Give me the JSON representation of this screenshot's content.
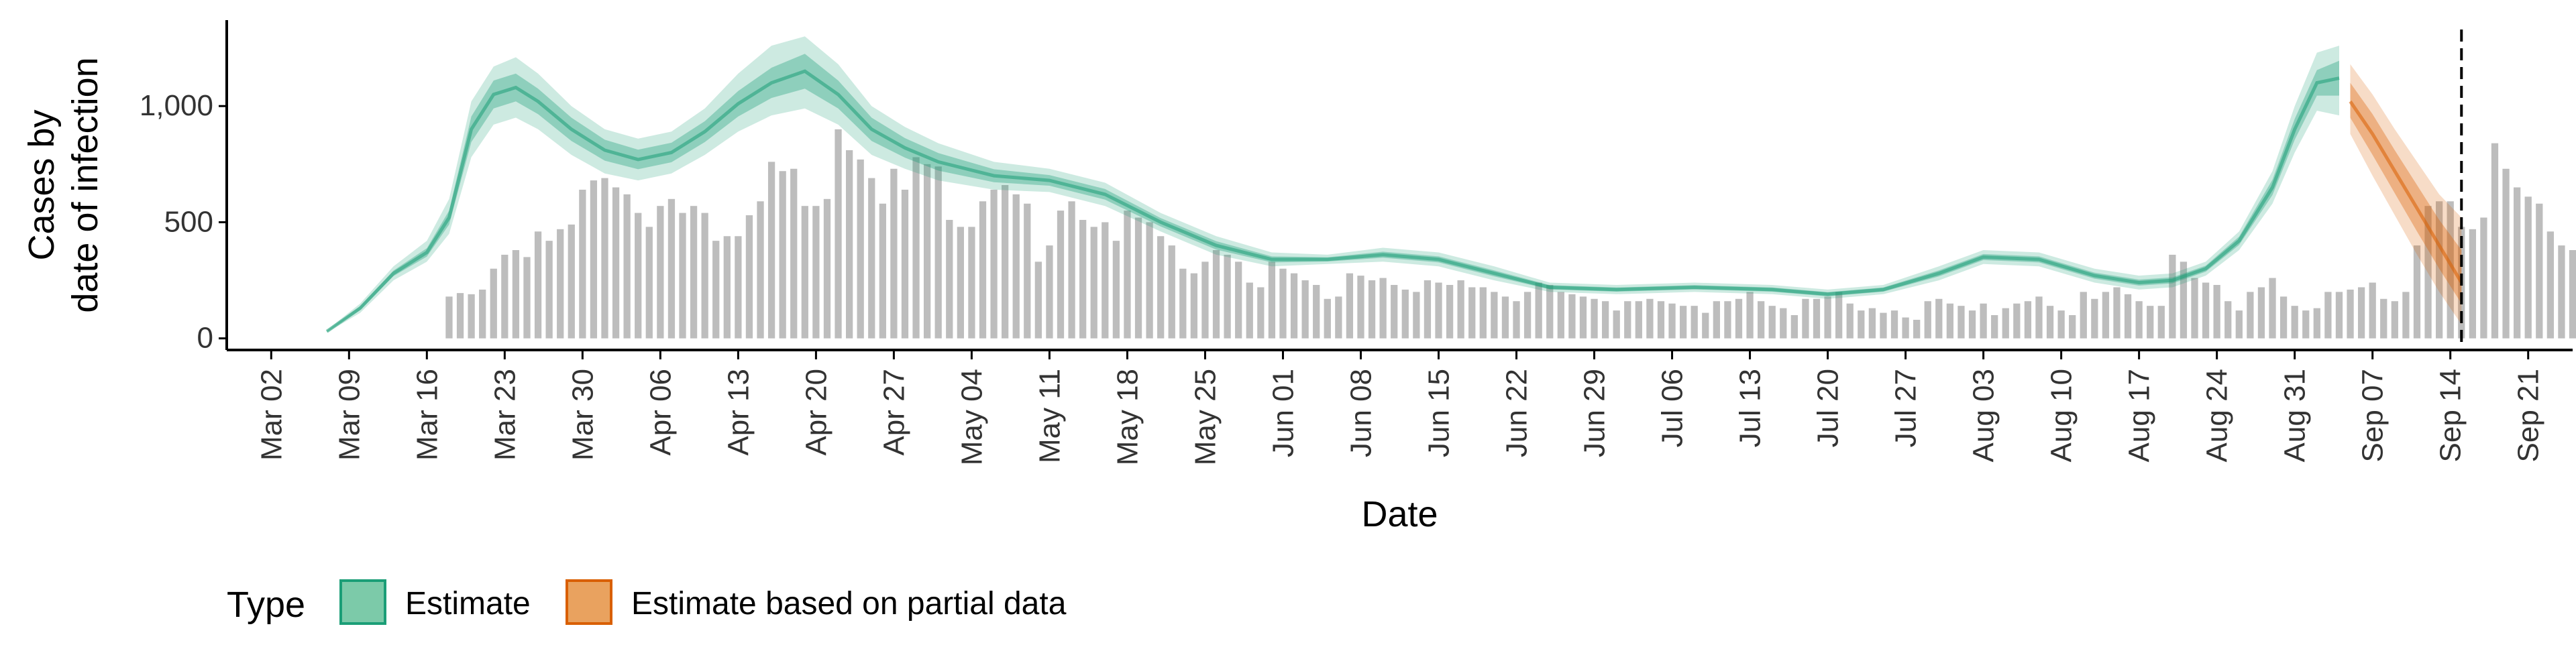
{
  "chart_data": {
    "type": "area",
    "xlabel": "Date",
    "ylabel_lines": [
      "Cases by",
      "date of infection"
    ],
    "ylim": [
      -50,
      1370
    ],
    "xlim": [
      "2020-02-27",
      "2020-09-25"
    ],
    "y_ticks": [
      {
        "value": 0,
        "label": "0"
      },
      {
        "value": 500,
        "label": "500"
      },
      {
        "value": 1000,
        "label": "1,000"
      }
    ],
    "x_ticks": [
      {
        "date": "2020-03-02",
        "label": "Mar 02"
      },
      {
        "date": "2020-03-09",
        "label": "Mar 09"
      },
      {
        "date": "2020-03-16",
        "label": "Mar 16"
      },
      {
        "date": "2020-03-23",
        "label": "Mar 23"
      },
      {
        "date": "2020-03-30",
        "label": "Mar 30"
      },
      {
        "date": "2020-04-06",
        "label": "Apr 06"
      },
      {
        "date": "2020-04-13",
        "label": "Apr 13"
      },
      {
        "date": "2020-04-20",
        "label": "Apr 20"
      },
      {
        "date": "2020-04-27",
        "label": "Apr 27"
      },
      {
        "date": "2020-05-04",
        "label": "May 04"
      },
      {
        "date": "2020-05-11",
        "label": "May 11"
      },
      {
        "date": "2020-05-18",
        "label": "May 18"
      },
      {
        "date": "2020-05-25",
        "label": "May 25"
      },
      {
        "date": "2020-06-01",
        "label": "Jun 01"
      },
      {
        "date": "2020-06-08",
        "label": "Jun 08"
      },
      {
        "date": "2020-06-15",
        "label": "Jun 15"
      },
      {
        "date": "2020-06-22",
        "label": "Jun 22"
      },
      {
        "date": "2020-06-29",
        "label": "Jun 29"
      },
      {
        "date": "2020-07-06",
        "label": "Jul 06"
      },
      {
        "date": "2020-07-13",
        "label": "Jul 13"
      },
      {
        "date": "2020-07-20",
        "label": "Jul 20"
      },
      {
        "date": "2020-07-27",
        "label": "Jul 27"
      },
      {
        "date": "2020-08-03",
        "label": "Aug 03"
      },
      {
        "date": "2020-08-10",
        "label": "Aug 10"
      },
      {
        "date": "2020-08-17",
        "label": "Aug 17"
      },
      {
        "date": "2020-08-24",
        "label": "Aug 24"
      },
      {
        "date": "2020-08-31",
        "label": "Aug 31"
      },
      {
        "date": "2020-09-07",
        "label": "Sep 07"
      },
      {
        "date": "2020-09-14",
        "label": "Sep 14"
      },
      {
        "date": "2020-09-21",
        "label": "Sep 21"
      }
    ],
    "cutoff_date": "2020-09-15",
    "bars": {
      "start_date": "2020-03-18",
      "color": "#bdbdbd",
      "values": [
        180,
        195,
        190,
        210,
        300,
        360,
        380,
        350,
        460,
        420,
        470,
        490,
        640,
        680,
        690,
        650,
        620,
        540,
        480,
        570,
        600,
        540,
        570,
        540,
        420,
        440,
        440,
        530,
        590,
        760,
        720,
        730,
        570,
        570,
        600,
        900,
        810,
        770,
        690,
        580,
        730,
        640,
        780,
        750,
        740,
        510,
        480,
        480,
        590,
        640,
        660,
        620,
        580,
        330,
        400,
        550,
        590,
        510,
        480,
        500,
        420,
        550,
        520,
        500,
        440,
        400,
        300,
        280,
        330,
        380,
        360,
        330,
        240,
        220,
        330,
        300,
        280,
        250,
        230,
        170,
        180,
        280,
        270,
        250,
        260,
        230,
        210,
        200,
        250,
        240,
        230,
        250,
        220,
        220,
        200,
        180,
        160,
        200,
        240,
        230,
        200,
        190,
        180,
        170,
        160,
        120,
        160,
        160,
        170,
        160,
        150,
        140,
        140,
        110,
        160,
        160,
        170,
        200,
        160,
        140,
        130,
        100,
        170,
        170,
        180,
        200,
        150,
        120,
        130,
        110,
        120,
        90,
        80,
        160,
        170,
        150,
        140,
        120,
        150,
        100,
        130,
        150,
        160,
        180,
        140,
        120,
        100,
        200,
        170,
        200,
        220,
        190,
        160,
        140,
        140,
        360,
        330,
        260,
        240,
        230,
        160,
        120,
        200,
        220,
        260,
        180,
        140,
        120,
        130,
        200,
        200,
        210,
        220,
        240,
        170,
        160,
        200,
        400,
        570,
        590,
        590,
        480,
        470,
        520,
        840,
        730,
        650,
        610,
        580,
        460,
        400,
        380,
        390,
        470,
        560,
        580
      ]
    },
    "estimate": {
      "name": "Estimate",
      "color": "#1b9e77",
      "dates": [
        "2020-03-07",
        "2020-03-10",
        "2020-03-13",
        "2020-03-16",
        "2020-03-18",
        "2020-03-20",
        "2020-03-22",
        "2020-03-24",
        "2020-03-26",
        "2020-03-29",
        "2020-04-01",
        "2020-04-04",
        "2020-04-07",
        "2020-04-10",
        "2020-04-13",
        "2020-04-16",
        "2020-04-19",
        "2020-04-22",
        "2020-04-25",
        "2020-04-28",
        "2020-05-01",
        "2020-05-06",
        "2020-05-11",
        "2020-05-16",
        "2020-05-21",
        "2020-05-26",
        "2020-05-31",
        "2020-06-05",
        "2020-06-10",
        "2020-06-15",
        "2020-06-20",
        "2020-06-25",
        "2020-07-01",
        "2020-07-08",
        "2020-07-15",
        "2020-07-20",
        "2020-07-25",
        "2020-07-30",
        "2020-08-03",
        "2020-08-08",
        "2020-08-13",
        "2020-08-17",
        "2020-08-20",
        "2020-08-23",
        "2020-08-26",
        "2020-08-29",
        "2020-08-31",
        "2020-09-02",
        "2020-09-04"
      ],
      "median": [
        30,
        130,
        280,
        370,
        520,
        900,
        1050,
        1080,
        1020,
        900,
        810,
        770,
        800,
        890,
        1010,
        1100,
        1150,
        1050,
        900,
        820,
        760,
        700,
        680,
        620,
        500,
        400,
        340,
        340,
        360,
        340,
        280,
        220,
        210,
        220,
        210,
        190,
        210,
        280,
        350,
        340,
        270,
        240,
        250,
        300,
        420,
        650,
        900,
        1100,
        1120
      ],
      "lower90": [
        25,
        110,
        250,
        330,
        450,
        780,
        920,
        950,
        900,
        790,
        710,
        680,
        710,
        790,
        890,
        960,
        990,
        920,
        790,
        730,
        680,
        640,
        630,
        570,
        460,
        360,
        310,
        320,
        330,
        310,
        250,
        200,
        190,
        200,
        190,
        170,
        190,
        250,
        320,
        310,
        240,
        210,
        220,
        270,
        380,
        580,
        800,
        980,
        960
      ],
      "upper90": [
        35,
        150,
        310,
        420,
        600,
        1020,
        1170,
        1210,
        1140,
        1000,
        900,
        860,
        890,
        990,
        1140,
        1260,
        1300,
        1180,
        1000,
        910,
        840,
        760,
        730,
        670,
        540,
        440,
        370,
        360,
        390,
        370,
        310,
        240,
        230,
        240,
        230,
        210,
        230,
        310,
        380,
        370,
        300,
        270,
        280,
        330,
        460,
        720,
        1000,
        1230,
        1260
      ],
      "lower50": [
        28,
        122,
        268,
        352,
        490,
        845,
        990,
        1020,
        965,
        850,
        765,
        728,
        758,
        845,
        955,
        1035,
        1075,
        990,
        850,
        778,
        722,
        672,
        657,
        597,
        482,
        382,
        327,
        331,
        347,
        327,
        267,
        211,
        201,
        211,
        201,
        181,
        201,
        267,
        337,
        327,
        257,
        227,
        237,
        287,
        402,
        617,
        855,
        1045,
        1045
      ],
      "upper50": [
        32,
        138,
        292,
        388,
        550,
        955,
        1110,
        1140,
        1075,
        950,
        855,
        812,
        842,
        935,
        1065,
        1165,
        1225,
        1110,
        950,
        862,
        798,
        728,
        703,
        643,
        518,
        418,
        353,
        349,
        373,
        353,
        293,
        229,
        219,
        229,
        219,
        199,
        219,
        293,
        363,
        353,
        283,
        253,
        263,
        313,
        438,
        683,
        945,
        1155,
        1195
      ]
    },
    "partial": {
      "name": "Estimate based on partial data",
      "color": "#d95f02",
      "dates": [
        "2020-09-05",
        "2020-09-07",
        "2020-09-09",
        "2020-09-11",
        "2020-09-13",
        "2020-09-15"
      ],
      "median": [
        1020,
        880,
        720,
        560,
        400,
        240
      ],
      "lower90": [
        880,
        700,
        530,
        360,
        200,
        60
      ],
      "upper90": [
        1180,
        1050,
        900,
        760,
        620,
        520
      ],
      "lower50": [
        950,
        790,
        625,
        460,
        300,
        150
      ],
      "upper50": [
        1100,
        965,
        810,
        660,
        510,
        380
      ]
    },
    "legend": {
      "title": "Type",
      "position": "bottom",
      "items": [
        {
          "label": "Estimate",
          "fill": "#7ccaa9",
          "stroke": "#1b9e77"
        },
        {
          "label": "Estimate based on partial data",
          "fill": "#e9a25f",
          "stroke": "#d95f02"
        }
      ]
    }
  }
}
